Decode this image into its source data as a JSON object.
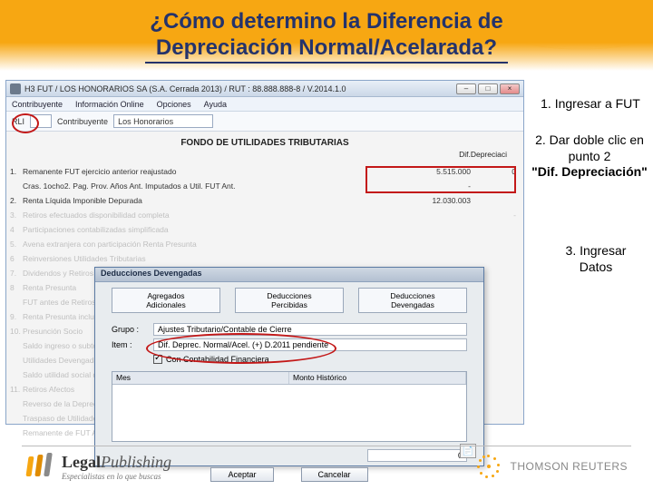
{
  "title_line1": "¿Cómo determino la Diferencia de",
  "title_line2": "Depreciación Normal/Acelarada?",
  "window": {
    "titlebar": "H3 FUT / LOS HONORARIOS SA   (S.A. Cerrada 2013) / RUT : 88.888.888-8 / V.2014.1.0",
    "menu": {
      "m1": "Contribuyente",
      "m2": "Información Online",
      "m3": "Opciones",
      "m4": "Ayuda"
    },
    "toolbar": {
      "field1_label": "RLI",
      "field2_label": "Contribuyente",
      "field2_value": "Los Honorarios"
    },
    "section_title": "FONDO DE UTILIDADES TRIBUTARIAS",
    "col_dep": "Dif.Depreciaci"
  },
  "items": [
    {
      "n": "1.",
      "label": "Remanente FUT ejercicio anterior reajustado",
      "val": "5.515.000",
      "dep": "0"
    },
    {
      "n": "",
      "label": "Cras. 1ocho2. Pag. Prov. Años Ant. Imputados a Util. FUT Ant.",
      "val": "-",
      "dep": ""
    },
    {
      "n": "2.",
      "label": "Renta Líquida Imponible Depurada",
      "val": "12.030.003",
      "dep": ""
    },
    {
      "n": "3.",
      "label": "Retiros efectuados disponibilidad completa",
      "val": "",
      "dep": "-"
    },
    {
      "n": "4",
      "label": "Participaciones contabilizadas simplificada",
      "val": "",
      "dep": ""
    },
    {
      "n": "5.",
      "label": "Avena extranjera con participación Renta Presunta",
      "val": "",
      "dep": ""
    },
    {
      "n": "6",
      "label": "Reinversiones Utilidades Tributarias",
      "val": "",
      "dep": ""
    },
    {
      "n": "7.",
      "label": "Dividendos y Retiros Exentos 1a. categoría con crédito",
      "val": "",
      "dep": ""
    },
    {
      "n": "8",
      "label": "Renta Presunta",
      "val": "",
      "dep": ""
    },
    {
      "n": "",
      "label": "FUT antes de Retiros",
      "val": "",
      "dep": ""
    },
    {
      "n": "9.",
      "label": "Renta Presunta incluida en punto 5",
      "val": "",
      "dep": ""
    },
    {
      "n": "10.",
      "label": "Presunción Socio",
      "val": "",
      "dep": ""
    },
    {
      "n": "",
      "label": "Saldo ingreso o subtotal negativo",
      "val": "",
      "dep": ""
    },
    {
      "n": "",
      "label": "Utilidades Devengadas en Empresas en que participa",
      "val": "",
      "dep": ""
    },
    {
      "n": "",
      "label": "Saldo utilidad social devengada",
      "val": "",
      "dep": ""
    },
    {
      "n": "11.",
      "label": "Retiros Afectos",
      "val": "",
      "dep": ""
    },
    {
      "n": "",
      "label": "Reverso de la Depreciación Normal",
      "val": "",
      "dep": ""
    },
    {
      "n": "",
      "label": "Traspaso de Utilidades Devengadas a empresas S",
      "val": "",
      "dep": ""
    },
    {
      "n": "",
      "label": "Remanente de FUT Año siguiente",
      "val": "",
      "dep": ""
    }
  ],
  "popup": {
    "title": "Deducciones Devengadas",
    "btn1": "Agregados\nAdicionales",
    "btn2": "Deducciones\nPercibidas",
    "btn3": "Deducciones\nDevengadas",
    "grupo_label": "Grupo :",
    "grupo_value": "Ajustes Tributario/Contable de Cierre",
    "item_label": "Item :",
    "item_value": "Dif. Deprec. Normal/Acel. (+) D.2011 pendiente",
    "checkbox": "Con Contabilidad Financiera",
    "grid_col1": "Mes",
    "grid_col2": "Monto Histórico",
    "total": "0",
    "accept": "Aceptar",
    "cancel": "Cancelar"
  },
  "annotations": {
    "a1": "1.   Ingresar a FUT",
    "a2a": "2.   Dar doble clic en",
    "a2b": "punto 2",
    "a2c": "\"Dif. Depreciación\"",
    "a3a": "3. Ingresar",
    "a3b": "Datos"
  },
  "footer": {
    "lp_name1": "Legal",
    "lp_name2": "Publishing",
    "lp_tag": "Especialistas en lo que buscas",
    "tr": "THOMSON REUTERS"
  }
}
